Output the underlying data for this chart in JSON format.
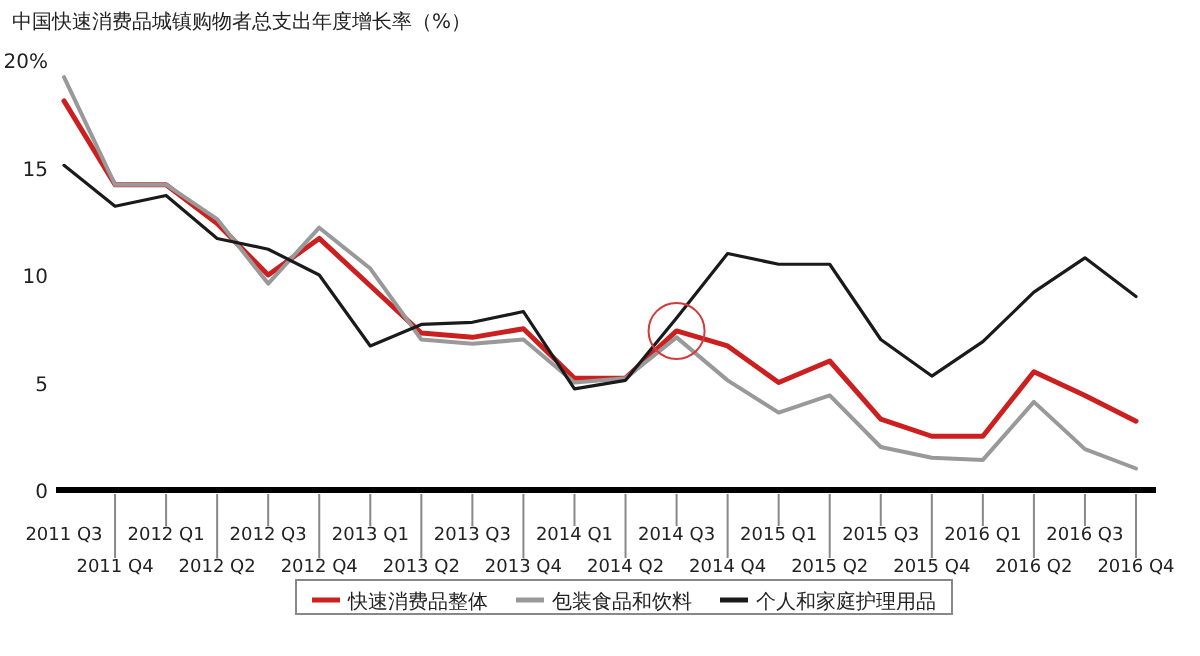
{
  "chart_data": {
    "type": "line",
    "title": "中国快速消费品城镇购物者总支出年度增长率（%）",
    "categories": [
      "2011 Q3",
      "2011 Q4",
      "2012 Q1",
      "2012 Q2",
      "2012 Q3",
      "2012 Q4",
      "2013 Q1",
      "2013 Q2",
      "2013 Q3",
      "2013 Q4",
      "2014 Q1",
      "2014 Q2",
      "2014 Q3",
      "2014 Q4",
      "2015 Q1",
      "2015 Q2",
      "2015 Q3",
      "2015 Q4",
      "2016 Q1",
      "2016 Q2",
      "2016 Q3",
      "2016 Q4"
    ],
    "series": [
      {
        "name": "快速消费品整体",
        "color": "#cc1f1f",
        "values": [
          18.1,
          14.2,
          14.2,
          12.4,
          10.0,
          11.7,
          9.5,
          7.3,
          7.1,
          7.5,
          5.2,
          5.2,
          7.4,
          6.7,
          5.0,
          6.0,
          3.3,
          2.5,
          2.5,
          5.5,
          4.4,
          3.2
        ]
      },
      {
        "name": "包装食品和饮料",
        "color": "#999999",
        "values": [
          19.2,
          14.2,
          14.2,
          12.6,
          9.6,
          12.2,
          10.3,
          7.0,
          6.8,
          7.0,
          5.0,
          5.2,
          7.1,
          5.1,
          3.6,
          4.4,
          2.0,
          1.5,
          1.4,
          4.1,
          1.9,
          1.0
        ]
      },
      {
        "name": "个人和家庭护理用品",
        "color": "#1a1a1a",
        "values": [
          15.1,
          13.2,
          13.7,
          11.7,
          11.2,
          10.0,
          6.7,
          7.7,
          7.8,
          8.3,
          4.7,
          5.1,
          8.0,
          11.0,
          10.5,
          10.5,
          7.0,
          5.3,
          6.9,
          9.2,
          10.8,
          9.0
        ]
      }
    ],
    "ylim": [
      0,
      20
    ],
    "yticks": [
      0,
      5,
      10,
      15,
      {
        "value": 20,
        "label": "20%"
      }
    ],
    "legend": "bottom"
  }
}
